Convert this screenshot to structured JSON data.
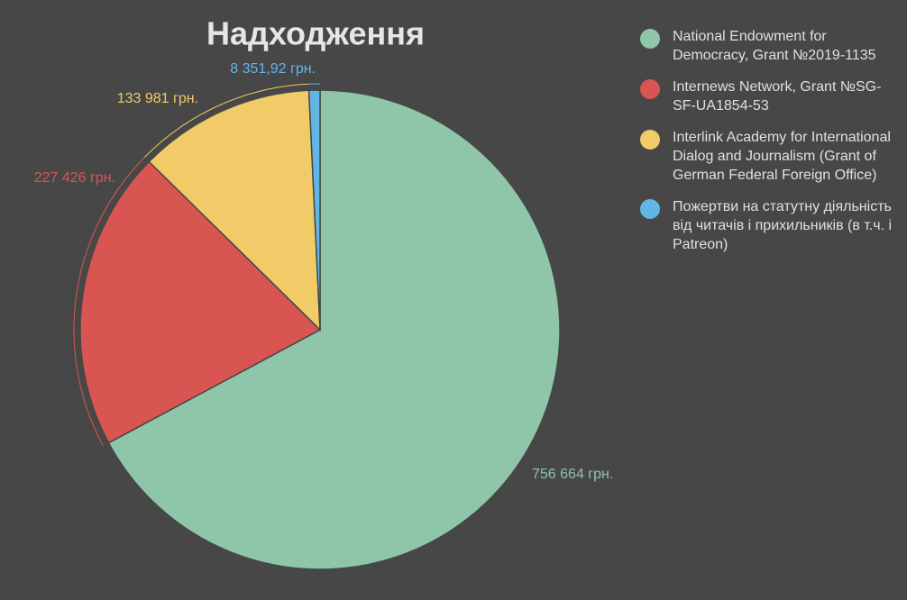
{
  "chart_data": {
    "type": "pie",
    "title": "Надходження",
    "categories": [
      "National Endowment for Democracy, Grant №2019-1135",
      "Internews Network, Grant №SG-SF-UA1854-53",
      "Interlink Academy for International Dialog and Journalism (Grant of German Federal Foreign Office)",
      "Пожертви на статутну діяльність від читачів і прихильників (в т.ч. і Patreon)"
    ],
    "values": [
      756664,
      227426,
      133981,
      8351.92
    ],
    "value_labels": [
      "756 664 грн.",
      "227 426 грн.",
      "133 981 грн.",
      "8 351,92 грн."
    ],
    "colors": [
      "#8fc5a8",
      "#d95552",
      "#f0cb67",
      "#62b6e6"
    ],
    "legend": "right"
  }
}
